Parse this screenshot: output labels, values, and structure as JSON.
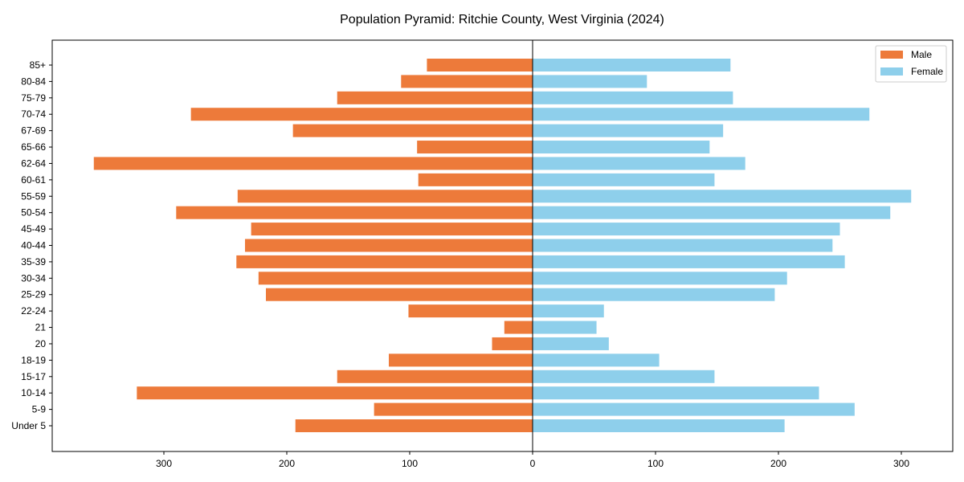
{
  "chart_data": {
    "type": "bar",
    "orientation": "horizontal-pyramid",
    "title": "Population Pyramid: Ritchie County, West Virginia (2024)",
    "xlabel": "",
    "ylabel": "",
    "xlim": [
      -390,
      340
    ],
    "xticks": [
      -300,
      -200,
      -100,
      0,
      100,
      200,
      300
    ],
    "xtick_labels": [
      "300",
      "200",
      "100",
      "0",
      "100",
      "200",
      "300"
    ],
    "legend_position": "top-right",
    "categories": [
      "85+",
      "80-84",
      "75-79",
      "70-74",
      "67-69",
      "65-66",
      "62-64",
      "60-61",
      "55-59",
      "50-54",
      "45-49",
      "40-44",
      "35-39",
      "30-34",
      "25-29",
      "22-24",
      "21",
      "20",
      "18-19",
      "15-17",
      "10-14",
      "5-9",
      "Under 5"
    ],
    "series": [
      {
        "name": "Male",
        "color": "#ed7a3a",
        "values": [
          86,
          107,
          159,
          278,
          195,
          94,
          357,
          93,
          240,
          290,
          229,
          234,
          241,
          223,
          217,
          101,
          23,
          33,
          117,
          159,
          322,
          129,
          193
        ]
      },
      {
        "name": "Female",
        "color": "#8ecfeb",
        "values": [
          161,
          93,
          163,
          274,
          155,
          144,
          173,
          148,
          308,
          291,
          250,
          244,
          254,
          207,
          197,
          58,
          52,
          62,
          103,
          148,
          233,
          262,
          205
        ]
      }
    ]
  }
}
